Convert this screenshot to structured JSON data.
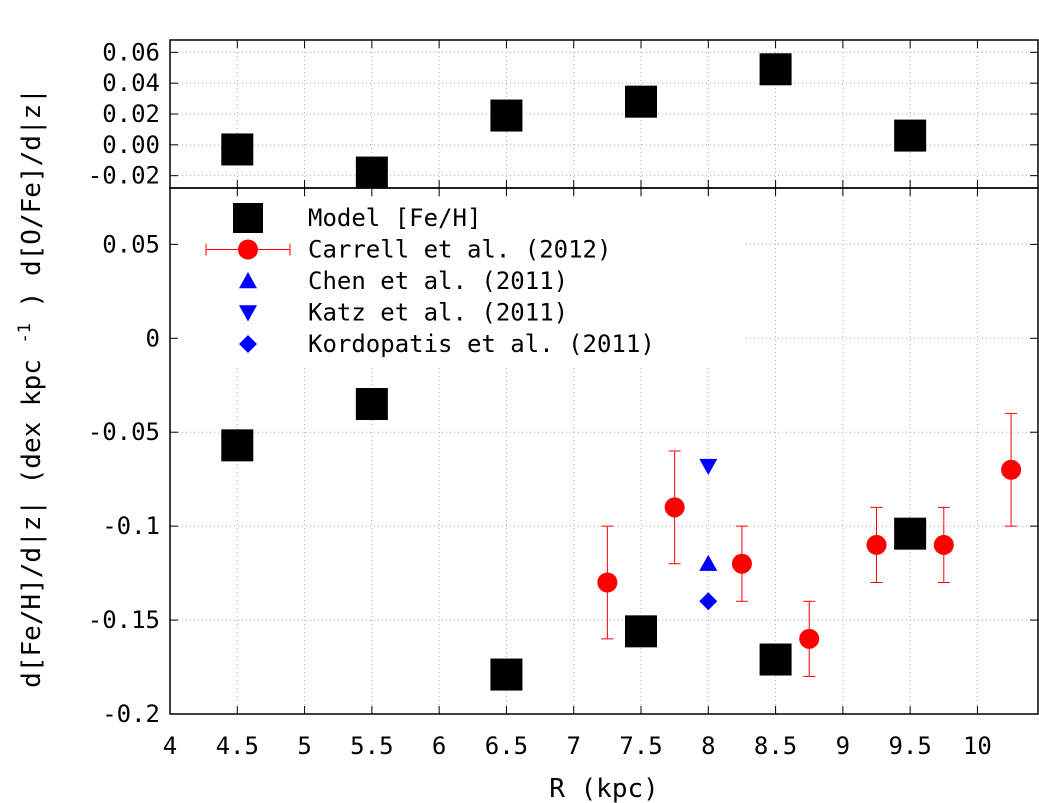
{
  "chart_data": [
    {
      "type": "scatter",
      "panel": "top",
      "xlim": [
        4,
        10.45
      ],
      "ylim": [
        -0.028,
        0.068
      ],
      "yticks": [
        "0.06",
        "0.04",
        "0.02",
        "0.00",
        "-0.02"
      ],
      "grid": true,
      "series": [
        {
          "name": "",
          "marker": "square",
          "color": "#000000",
          "x": [
            4.5,
            5.5,
            6.5,
            7.5,
            8.5,
            9.5
          ],
          "y": [
            -0.003,
            -0.018,
            0.019,
            0.028,
            0.049,
            0.006
          ]
        }
      ]
    },
    {
      "type": "scatter",
      "panel": "bottom",
      "xlim": [
        4,
        10.45
      ],
      "ylim": [
        -0.2,
        0.08
      ],
      "xticks": [
        "4",
        "4.5",
        "5",
        "5.5",
        "6",
        "6.5",
        "7",
        "7.5",
        "8",
        "8.5",
        "9",
        "9.5",
        "10"
      ],
      "yticks": [
        "0.05",
        "0",
        "-0.05",
        "-0.1",
        "-0.15",
        "-0.2"
      ],
      "xlabel": "R (kpc)",
      "ylabel_bottom": "d[Fe/H]/d|z|",
      "ylabel_middle": "(dex kpc",
      "ylabel_exponent": "-1",
      "ylabel_top": ") d[O/Fe]/d|z|",
      "grid": true,
      "legend_position": "top-left",
      "series": [
        {
          "name": "Model [Fe/H]",
          "marker": "square",
          "color": "#000000",
          "x": [
            4.5,
            5.5,
            6.5,
            7.5,
            8.5,
            9.5
          ],
          "y": [
            -0.057,
            -0.035,
            -0.179,
            -0.156,
            -0.171,
            -0.104
          ]
        },
        {
          "name": "Carrell et al. (2012)",
          "marker": "circle",
          "color": "#ff0000",
          "x": [
            7.25,
            7.75,
            8.25,
            8.75,
            9.25,
            9.75,
            10.25
          ],
          "y": [
            -0.13,
            -0.09,
            -0.12,
            -0.16,
            -0.11,
            -0.11,
            -0.07
          ],
          "yerr": [
            0.03,
            0.03,
            0.02,
            0.02,
            0.02,
            0.02,
            0.03
          ]
        },
        {
          "name": "Chen et al. (2011)",
          "marker": "triangle-up",
          "color": "#0000ff",
          "x": [
            8.0
          ],
          "y": [
            -0.12
          ]
        },
        {
          "name": "Katz et al. (2011)",
          "marker": "triangle-down",
          "color": "#0000ff",
          "x": [
            8.0
          ],
          "y": [
            -0.068
          ]
        },
        {
          "name": "Kordopatis et al. (2011)",
          "marker": "diamond",
          "color": "#0000ff",
          "x": [
            8.0
          ],
          "y": [
            -0.14
          ]
        }
      ]
    }
  ]
}
